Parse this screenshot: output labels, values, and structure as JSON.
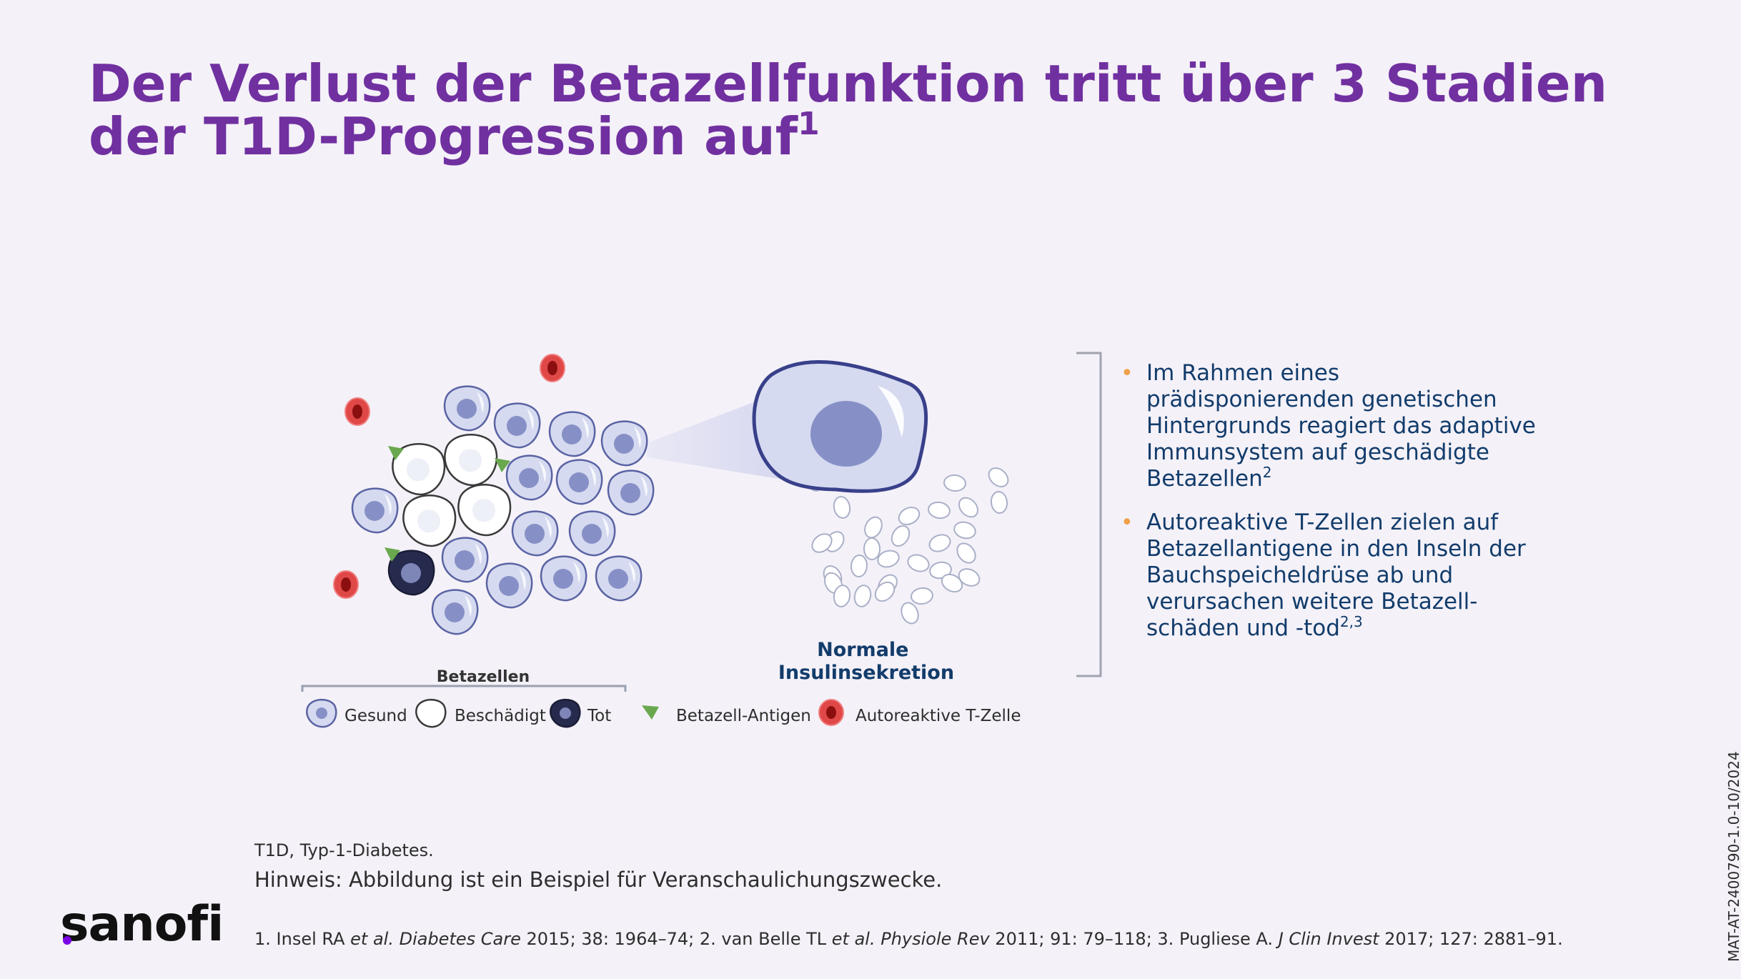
{
  "title": {
    "text": "Der Verlust der Betazellfunktion tritt über 3 Stadien der T1D-Progression auf",
    "footnote_marker": "1"
  },
  "diagram": {
    "betazellen_label": "Betazellen",
    "normal_label_line1": "Normale",
    "normal_label_line2": "Insulinsekretion",
    "legend": {
      "gesund": "Gesund",
      "beschaedigt": "Beschädigt",
      "tot": "Tot",
      "antigen": "Betazell-Antigen",
      "tcell": "Autoreaktive T-Zelle"
    },
    "colors": {
      "healthy_fill": "#d5daf0",
      "healthy_nucleus": "#8790c6",
      "cell_outline": "#5a63a3",
      "dead_fill": "#262b4e",
      "antigen": "#6aa84f",
      "tcell": "#e04848",
      "title": "#7030a0",
      "bullet_text": "#123c6b",
      "bullet_marker": "#f0a04a"
    }
  },
  "bullets": [
    {
      "text": "Im Rahmen eines prädisponierenden genetischen Hintergrunds reagiert das adaptive Immunsystem auf geschädigte Betazellen",
      "ref": "2"
    },
    {
      "text": "Autoreaktive T-Zellen zielen auf Betazellantigene in den Inseln der Bauchspeicheldrüse ab und verursachen weitere Betazell-schäden und -tod",
      "ref": "2,3"
    }
  ],
  "footer": {
    "abbreviation": "T1D, Typ-1-Diabetes.",
    "note": "Hinweis: Abbildung ist ein Beispiel für Veranschaulichungszwecke.",
    "refs": {
      "r1_a": "1. Insel RA ",
      "r1_b": "et al.",
      "r1_c": " ",
      "r1_d": "Diabetes Care",
      "r1_e": " 2015; 38: 1964–74; 2. van Belle TL ",
      "r2_b": "et al.",
      "r2_c": " ",
      "r2_d": "Physiole Rev",
      "r2_e": " 2011; 91: 79–118; 3. Pugliese A. ",
      "r3_d": "J Clin Invest",
      "r3_e": " 2017; 127: 2881–91."
    },
    "logo": "sanofi",
    "doc_id": "MAT-AT-2400790-1.0-10/2024"
  }
}
